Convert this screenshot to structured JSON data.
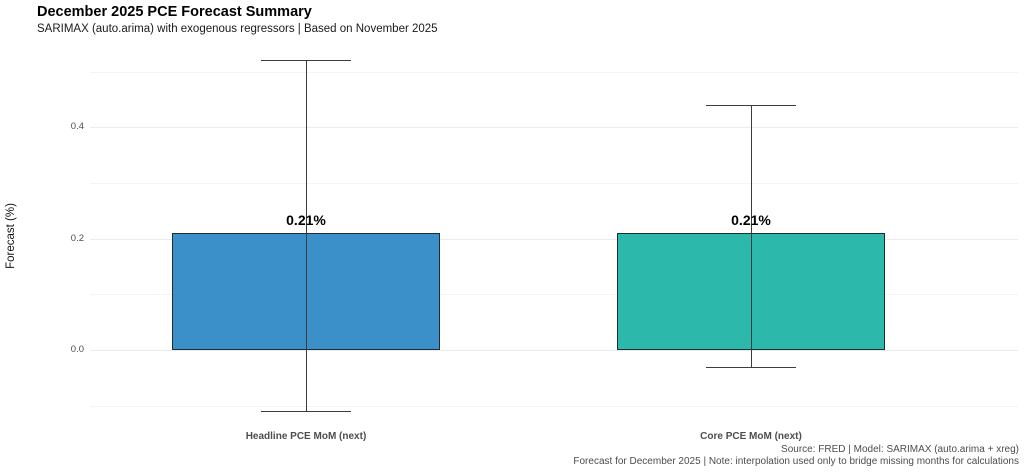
{
  "chart_data": {
    "type": "bar",
    "title": "December 2025 PCE Forecast Summary",
    "subtitle": "SARIMAX (auto.arima) with exogenous regressors | Based on November 2025",
    "ylabel": "Forecast (%)",
    "xlabel": "",
    "categories": [
      "Headline PCE MoM (next)",
      "Core PCE MoM (next)"
    ],
    "values": [
      0.21,
      0.21
    ],
    "value_labels": [
      "0.21%",
      "0.21%"
    ],
    "error_bars": {
      "upper": [
        0.52,
        0.44
      ],
      "lower": [
        -0.11,
        -0.03
      ]
    },
    "bar_colors": [
      "#3b90c9",
      "#2cb8aa"
    ],
    "bar_border_color": "#1e2d38",
    "errorbar_color": "#3c3c3c",
    "ylim": [
      -0.14,
      0.55
    ],
    "yticks": [
      0.0,
      0.2,
      0.4
    ],
    "ytick_labels": [
      "0.0",
      "0.2",
      "0.4"
    ],
    "yticks_minor": [
      -0.1,
      0.1,
      0.3,
      0.5
    ],
    "grid": {
      "horizontal": true,
      "vertical": false,
      "major_color": "#ebebeb",
      "minor_color": "#f4f4f4"
    },
    "legend": "none",
    "background": "#ffffff",
    "caption_lines": [
      "Source: FRED | Model: SARIMAX (auto.arima + xreg)",
      "Forecast for December 2025 | Note: interpolation used only to bridge missing months for calculations"
    ]
  }
}
